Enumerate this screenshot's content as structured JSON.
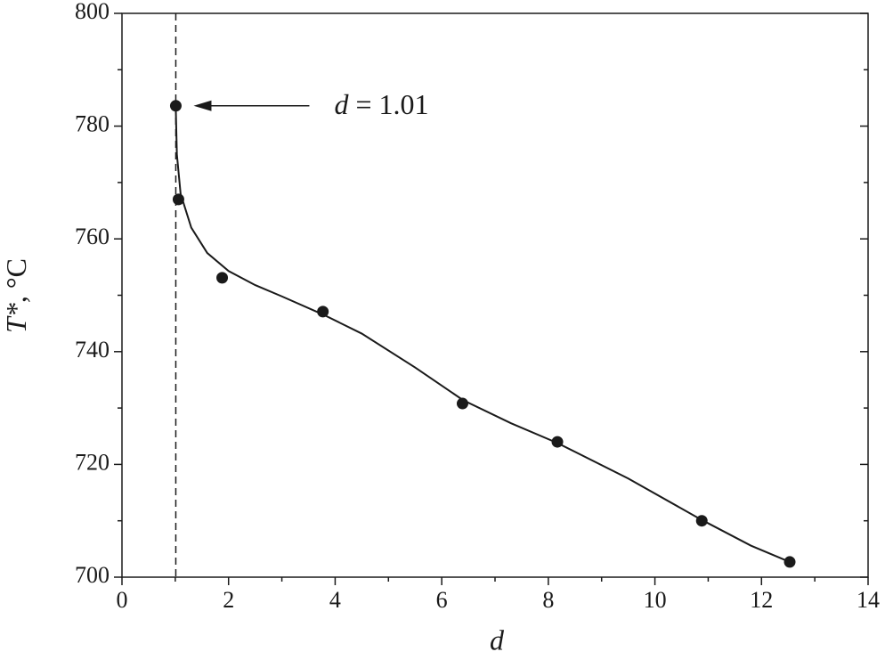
{
  "chart_data": {
    "type": "scatter",
    "xlabel": "d",
    "ylabel_symbol": "T*",
    "ylabel_unit": ", °C",
    "annotation_var": "d",
    "annotation_value": "= 1.01",
    "vline": 1.01,
    "x": [
      1.01,
      1.06,
      1.88,
      3.77,
      6.39,
      8.17,
      10.88,
      12.53
    ],
    "values": [
      783.6,
      767,
      753.1,
      747.1,
      730.8,
      724,
      710,
      702.7
    ],
    "color": "#1a1a1a",
    "fit": {
      "x": [
        1.01,
        1.03,
        1.1,
        1.3,
        1.6,
        2,
        2.5,
        3,
        3.77,
        4.5,
        5.5,
        6.4,
        7.3,
        8.17,
        9.5,
        10.87,
        11.8,
        12.53
      ],
      "values": [
        783,
        775,
        768,
        762,
        757.5,
        754.3,
        751.8,
        749.8,
        746.6,
        743.2,
        737.2,
        731.4,
        727.3,
        723.8,
        717.5,
        710.2,
        705.6,
        702.7
      ]
    },
    "xlim": [
      0,
      14
    ],
    "xticks": [
      0,
      2,
      4,
      6,
      8,
      10,
      12,
      14
    ],
    "xminorticks": [
      1,
      3,
      5,
      7,
      9,
      11,
      13
    ],
    "ylim": [
      700,
      800
    ],
    "yticks": [
      700,
      720,
      740,
      760,
      780,
      800
    ],
    "yminorticks": [
      710,
      730,
      750,
      770,
      790
    ]
  }
}
